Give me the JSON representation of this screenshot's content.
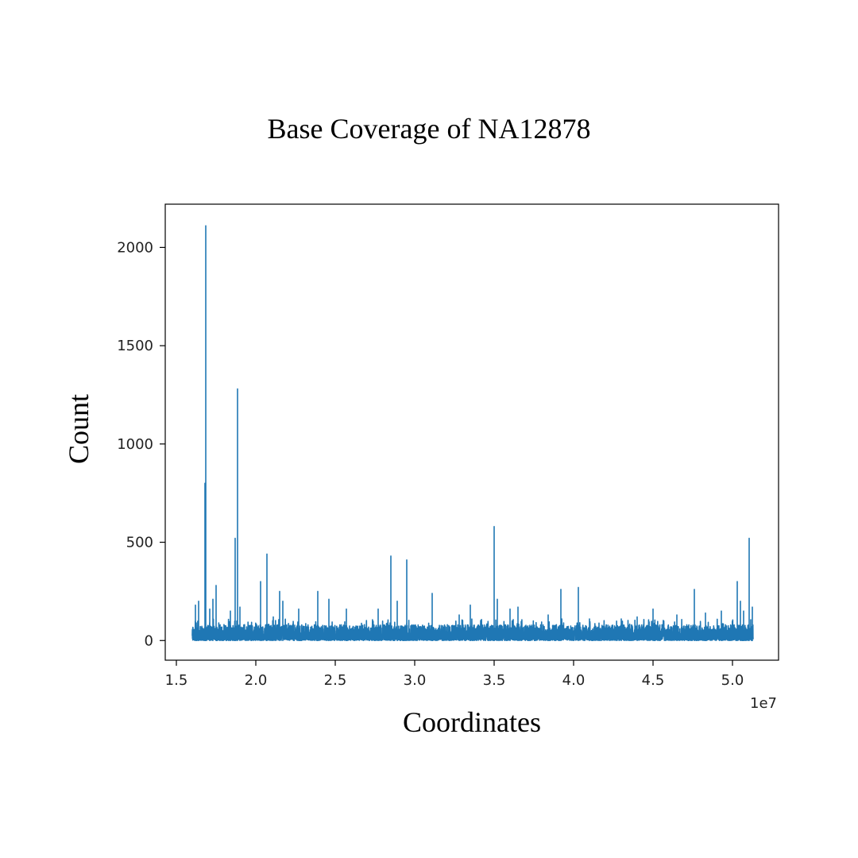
{
  "chart_data": {
    "type": "line",
    "title": "Base Coverage of NA12878",
    "xlabel": "Coordinates",
    "ylabel": "Count",
    "x_offset_label": "1e7",
    "xlim": [
      14300000,
      52900000
    ],
    "ylim": [
      -100,
      2220
    ],
    "x_ticks": [
      15000000,
      20000000,
      25000000,
      30000000,
      35000000,
      40000000,
      45000000,
      50000000
    ],
    "x_tick_labels": [
      "1.5",
      "2.0",
      "2.5",
      "3.0",
      "3.5",
      "4.0",
      "4.5",
      "5.0"
    ],
    "y_ticks": [
      0,
      500,
      1000,
      1500,
      2000
    ],
    "y_tick_labels": [
      "0",
      "500",
      "1000",
      "1500",
      "2000"
    ],
    "grid": false,
    "legend": "none",
    "x_range": [
      16000000,
      51300000
    ],
    "baseline_max": 80,
    "series": [
      {
        "color": "#1f77b4",
        "peaks": [
          {
            "x": 16200000,
            "y": 180
          },
          {
            "x": 16400000,
            "y": 200
          },
          {
            "x": 16800000,
            "y": 800
          },
          {
            "x": 16850000,
            "y": 2110
          },
          {
            "x": 17100000,
            "y": 160
          },
          {
            "x": 17300000,
            "y": 210
          },
          {
            "x": 17500000,
            "y": 280
          },
          {
            "x": 18400000,
            "y": 150
          },
          {
            "x": 18700000,
            "y": 520
          },
          {
            "x": 18850000,
            "y": 1280
          },
          {
            "x": 19000000,
            "y": 170
          },
          {
            "x": 20300000,
            "y": 300
          },
          {
            "x": 20700000,
            "y": 440
          },
          {
            "x": 21100000,
            "y": 120
          },
          {
            "x": 21500000,
            "y": 250
          },
          {
            "x": 21700000,
            "y": 200
          },
          {
            "x": 22700000,
            "y": 160
          },
          {
            "x": 23900000,
            "y": 250
          },
          {
            "x": 24600000,
            "y": 210
          },
          {
            "x": 25700000,
            "y": 160
          },
          {
            "x": 27700000,
            "y": 160
          },
          {
            "x": 28500000,
            "y": 430
          },
          {
            "x": 28900000,
            "y": 200
          },
          {
            "x": 29500000,
            "y": 410
          },
          {
            "x": 31100000,
            "y": 240
          },
          {
            "x": 32800000,
            "y": 130
          },
          {
            "x": 33500000,
            "y": 180
          },
          {
            "x": 35000000,
            "y": 580
          },
          {
            "x": 35200000,
            "y": 210
          },
          {
            "x": 36000000,
            "y": 160
          },
          {
            "x": 36500000,
            "y": 170
          },
          {
            "x": 38400000,
            "y": 130
          },
          {
            "x": 39200000,
            "y": 260
          },
          {
            "x": 40300000,
            "y": 270
          },
          {
            "x": 41000000,
            "y": 110
          },
          {
            "x": 43000000,
            "y": 110
          },
          {
            "x": 44000000,
            "y": 120
          },
          {
            "x": 45000000,
            "y": 160
          },
          {
            "x": 46500000,
            "y": 130
          },
          {
            "x": 47600000,
            "y": 260
          },
          {
            "x": 48300000,
            "y": 140
          },
          {
            "x": 49300000,
            "y": 150
          },
          {
            "x": 50300000,
            "y": 300
          },
          {
            "x": 50500000,
            "y": 200
          },
          {
            "x": 50700000,
            "y": 150
          },
          {
            "x": 51050000,
            "y": 520
          },
          {
            "x": 51250000,
            "y": 170
          }
        ]
      }
    ]
  }
}
